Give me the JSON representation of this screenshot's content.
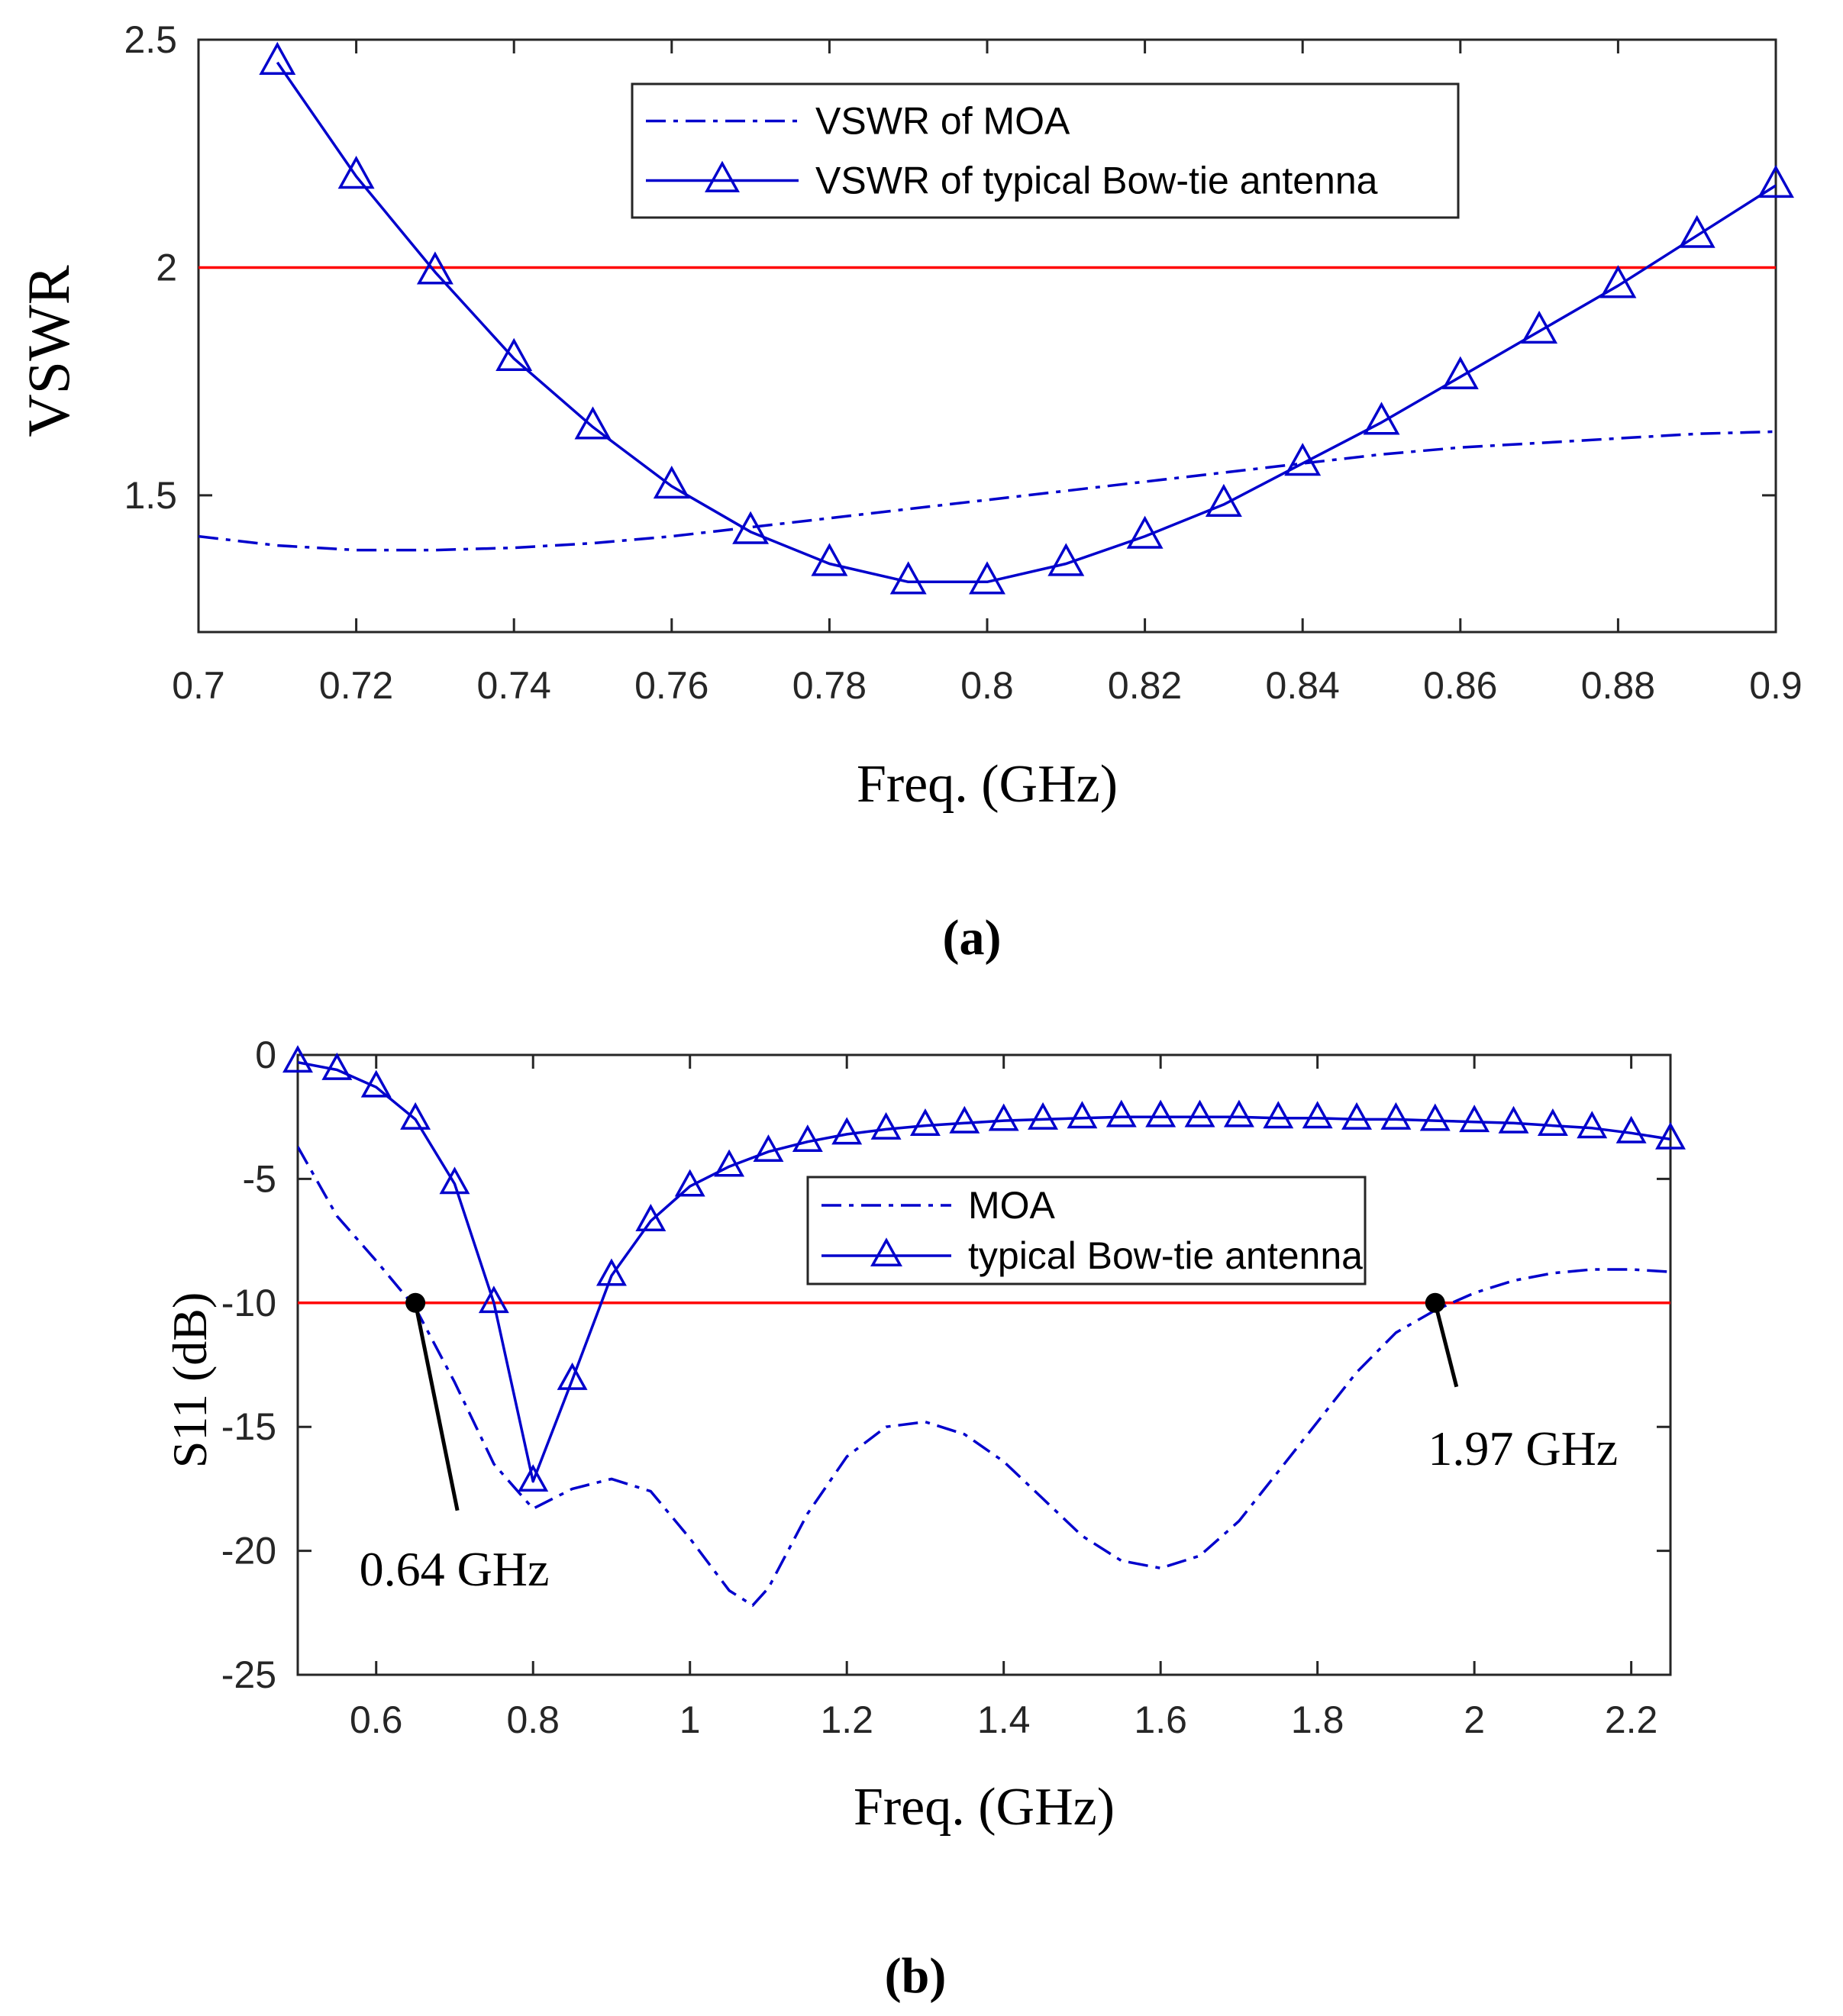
{
  "chart_data": [
    {
      "type": "line",
      "panel_label": "(a)",
      "xlabel": "Freq. (GHz)",
      "ylabel": "VSWR",
      "xlim": [
        0.7,
        0.9
      ],
      "ylim": [
        1.2,
        2.5
      ],
      "xticks": [
        "0.7",
        "0.72",
        "0.74",
        "0.76",
        "0.78",
        "0.8",
        "0.82",
        "0.84",
        "0.86",
        "0.88",
        "0.9"
      ],
      "yticks": [
        "1.5",
        "2",
        "2.5"
      ],
      "legend_position": "top-right",
      "reference_line": {
        "y": 2,
        "color": "#ff0000"
      },
      "series": [
        {
          "name": "VSWR of MOA",
          "style": "dashdot",
          "color": "#0000cc",
          "x": [
            0.7,
            0.71,
            0.72,
            0.73,
            0.74,
            0.75,
            0.76,
            0.77,
            0.78,
            0.79,
            0.8,
            0.81,
            0.82,
            0.83,
            0.84,
            0.85,
            0.86,
            0.87,
            0.88,
            0.89,
            0.9
          ],
          "y": [
            1.41,
            1.39,
            1.38,
            1.38,
            1.385,
            1.395,
            1.41,
            1.43,
            1.45,
            1.47,
            1.49,
            1.51,
            1.53,
            1.55,
            1.57,
            1.59,
            1.605,
            1.615,
            1.625,
            1.635,
            1.64
          ]
        },
        {
          "name": "VSWR of typical Bow-tie antenna",
          "style": "solid",
          "marker": "triangle",
          "color": "#0000cc",
          "x": [
            0.71,
            0.72,
            0.73,
            0.74,
            0.75,
            0.76,
            0.77,
            0.78,
            0.79,
            0.8,
            0.81,
            0.82,
            0.83,
            0.84,
            0.85,
            0.86,
            0.87,
            0.88,
            0.89,
            0.9
          ],
          "y": [
            2.45,
            2.2,
            1.99,
            1.8,
            1.65,
            1.52,
            1.42,
            1.35,
            1.31,
            1.31,
            1.35,
            1.41,
            1.48,
            1.57,
            1.66,
            1.76,
            1.86,
            1.96,
            2.07,
            2.18
          ]
        }
      ]
    },
    {
      "type": "line",
      "panel_label": "(b)",
      "xlabel": "Freq. (GHz)",
      "ylabel": "S11 (dB)",
      "xlim": [
        0.5,
        2.25
      ],
      "ylim": [
        -25,
        0
      ],
      "xticks": [
        "0.6",
        "0.8",
        "1",
        "1.2",
        "1.4",
        "1.6",
        "1.8",
        "2",
        "2.2"
      ],
      "yticks": [
        "0",
        "-5",
        "-10",
        "-15",
        "-20",
        "-25"
      ],
      "legend_position": "center-right",
      "reference_line": {
        "y": -10,
        "color": "#ff0000"
      },
      "annotations": [
        {
          "label": "0.64 GHz",
          "x": 0.65,
          "y": -10
        },
        {
          "label": "1.97 GHz",
          "x": 1.95,
          "y": -10
        }
      ],
      "series": [
        {
          "name": "MOA",
          "style": "dashdot",
          "color": "#0000cc",
          "x": [
            0.5,
            0.55,
            0.6,
            0.65,
            0.7,
            0.75,
            0.8,
            0.85,
            0.9,
            0.95,
            1.0,
            1.05,
            1.08,
            1.1,
            1.15,
            1.2,
            1.25,
            1.3,
            1.35,
            1.4,
            1.45,
            1.5,
            1.55,
            1.6,
            1.65,
            1.7,
            1.75,
            1.8,
            1.85,
            1.9,
            1.95,
            2.0,
            2.05,
            2.1,
            2.15,
            2.2,
            2.25
          ],
          "y": [
            -3.7,
            -6.5,
            -8.3,
            -10.2,
            -13.2,
            -16.5,
            -18.3,
            -17.5,
            -17.1,
            -17.6,
            -19.5,
            -21.6,
            -22.2,
            -21.5,
            -18.5,
            -16.2,
            -15.0,
            -14.8,
            -15.3,
            -16.4,
            -17.9,
            -19.4,
            -20.4,
            -20.7,
            -20.2,
            -18.8,
            -16.8,
            -14.8,
            -12.8,
            -11.2,
            -10.3,
            -9.6,
            -9.1,
            -8.8,
            -8.65,
            -8.65,
            -8.75
          ]
        },
        {
          "name": "typical Bow-tie antenna",
          "style": "solid",
          "marker": "triangle",
          "color": "#0000cc",
          "x": [
            0.5,
            0.55,
            0.6,
            0.65,
            0.7,
            0.75,
            0.8,
            0.85,
            0.9,
            0.95,
            1.0,
            1.05,
            1.1,
            1.15,
            1.2,
            1.25,
            1.3,
            1.35,
            1.4,
            1.45,
            1.5,
            1.55,
            1.6,
            1.65,
            1.7,
            1.75,
            1.8,
            1.85,
            1.9,
            1.95,
            2.0,
            2.05,
            2.1,
            2.15,
            2.2,
            2.25
          ],
          "y": [
            -0.3,
            -0.6,
            -1.3,
            -2.6,
            -5.2,
            -10.0,
            -17.2,
            -13.1,
            -8.9,
            -6.7,
            -5.3,
            -4.5,
            -3.9,
            -3.5,
            -3.2,
            -3.0,
            -2.85,
            -2.75,
            -2.65,
            -2.6,
            -2.55,
            -2.5,
            -2.5,
            -2.5,
            -2.5,
            -2.55,
            -2.55,
            -2.6,
            -2.6,
            -2.65,
            -2.7,
            -2.75,
            -2.85,
            -2.95,
            -3.15,
            -3.4
          ]
        }
      ]
    }
  ]
}
